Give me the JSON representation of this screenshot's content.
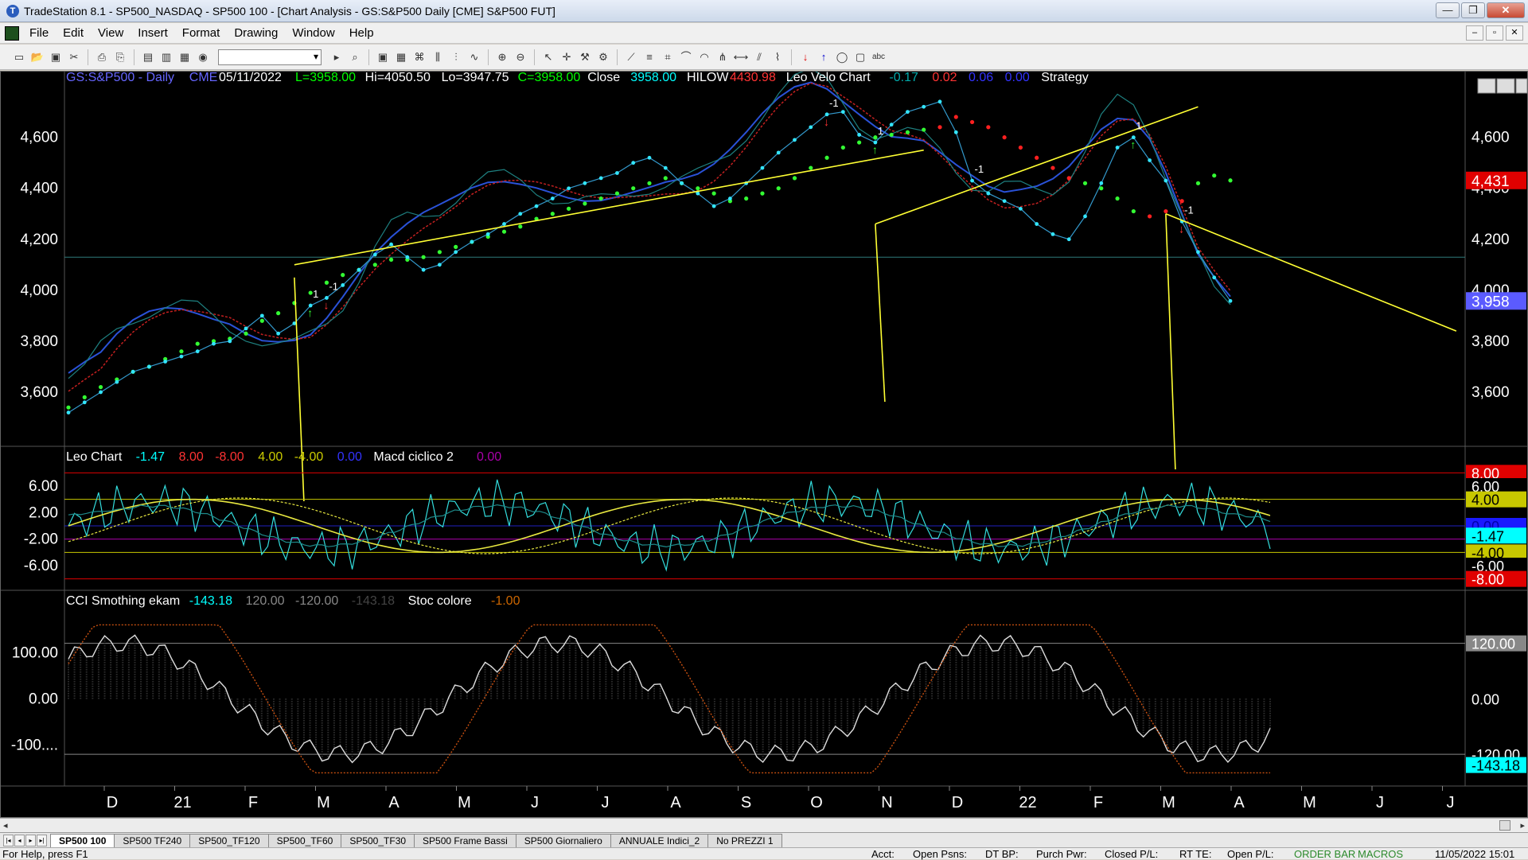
{
  "window": {
    "title": "TradeStation 8.1 - SP500_NASDAQ - SP500 100 - [Chart Analysis - GS:S&P500  Daily  [CME] S&P500 FUT]",
    "buttons": {
      "minimize": "—",
      "restore": "❐",
      "close": "✕"
    }
  },
  "menu": [
    "File",
    "Edit",
    "View",
    "Insert",
    "Format",
    "Drawing",
    "Window",
    "Help"
  ],
  "mdi_buttons": {
    "minimize": "–",
    "restore": "▫",
    "close": "✕"
  },
  "panels": {
    "price": {
      "legend": [
        {
          "text": "GS:S&P500 - Daily",
          "color": "#6666ff"
        },
        {
          "text": "CME",
          "color": "#6666ff"
        },
        {
          "text": "05/11/2022",
          "color": "#ffffff"
        },
        {
          "text": "L=3958.00",
          "color": "#00ff00"
        },
        {
          "text": "Hi=4050.50",
          "color": "#ffffff"
        },
        {
          "text": "Lo=3947.75",
          "color": "#ffffff"
        },
        {
          "text": "C=3958.00",
          "color": "#00ff00"
        },
        {
          "text": "Close",
          "color": "#ffffff"
        },
        {
          "text": "3958.00",
          "color": "#00ffff"
        },
        {
          "text": "HILOW",
          "color": "#ffffff"
        },
        {
          "text": "4430.98",
          "color": "#ff3333"
        },
        {
          "text": "Leo Velo Chart",
          "color": "#ffffff"
        },
        {
          "text": "-0.17",
          "color": "#00aaaa"
        },
        {
          "text": "0.02",
          "color": "#ff3333"
        },
        {
          "text": "0.06",
          "color": "#3333ff"
        },
        {
          "text": "0.00",
          "color": "#3333ff"
        },
        {
          "text": "Strategy",
          "color": "#ffffff"
        }
      ],
      "y_ticks": [
        "4,600",
        "4,400",
        "4,200",
        "4,000",
        "3,800",
        "3,600"
      ],
      "price_tags": [
        {
          "text": "4,431",
          "bg": "#e00000",
          "fg": "#ffffff"
        },
        {
          "text": "3,958",
          "bg": "#5b5bff",
          "fg": "#ffffff"
        }
      ]
    },
    "macd": {
      "legend": [
        {
          "text": "Leo Chart",
          "color": "#ffffff"
        },
        {
          "text": "-1.47",
          "color": "#00ffff"
        },
        {
          "text": "8.00",
          "color": "#ff3333"
        },
        {
          "text": "-8.00",
          "color": "#ff3333"
        },
        {
          "text": "4.00",
          "color": "#cccc00"
        },
        {
          "text": "-4.00",
          "color": "#cccc00"
        },
        {
          "text": "0.00",
          "color": "#3333ff"
        },
        {
          "text": "Macd ciclico 2",
          "color": "#ffffff"
        },
        {
          "text": "0.00",
          "color": "#aa00aa"
        }
      ],
      "y_ticks": [
        "6.00",
        "2.00",
        "-2.00",
        "-6.00"
      ],
      "tags": [
        {
          "text": "8.00",
          "bg": "#e00000",
          "fg": "#ffffff"
        },
        {
          "text": "6.00",
          "bg": "#000000",
          "fg": "#ffffff"
        },
        {
          "text": "4.00",
          "bg": "#c8c800",
          "fg": "#000000"
        },
        {
          "text": "0.00",
          "bg": "#1a1aff",
          "fg": "#0000aa"
        },
        {
          "text": "-1.47",
          "bg": "#00ffff",
          "fg": "#000000"
        },
        {
          "text": "-4.00",
          "bg": "#c8c800",
          "fg": "#000000"
        },
        {
          "text": "-6.00",
          "bg": "#000000",
          "fg": "#ffffff"
        },
        {
          "text": "-8.00",
          "bg": "#e00000",
          "fg": "#ffffff"
        }
      ]
    },
    "cci": {
      "legend": [
        {
          "text": "CCI Smothing ekam",
          "color": "#ffffff"
        },
        {
          "text": "-143.18",
          "color": "#00ffff"
        },
        {
          "text": "120.00",
          "color": "#888888"
        },
        {
          "text": "-120.00",
          "color": "#888888"
        },
        {
          "text": "-143.18",
          "color": "#444444"
        },
        {
          "text": "Stoc colore",
          "color": "#ffffff"
        },
        {
          "text": "-1.00",
          "color": "#cc6600"
        }
      ],
      "y_ticks": [
        "100.00",
        "0.00",
        "-100...."
      ],
      "tags": [
        {
          "text": "120.00",
          "bg": "#888888",
          "fg": "#ffffff"
        },
        {
          "text": "0.00",
          "bg": "#000000",
          "fg": "#ffffff"
        },
        {
          "text": "-120.00",
          "bg": "#000000",
          "fg": "#ffffff"
        },
        {
          "text": "-143.18",
          "bg": "#00ffff",
          "fg": "#000000"
        }
      ]
    }
  },
  "x_labels": [
    "D",
    "21",
    "F",
    "M",
    "A",
    "M",
    "J",
    "J",
    "A",
    "S",
    "O",
    "N",
    "D",
    "22",
    "F",
    "M",
    "A",
    "M",
    "J",
    "J"
  ],
  "chart_data": {
    "type": "line",
    "ylim": [
      3450,
      4780
    ],
    "close": [
      3520,
      3560,
      3600,
      3640,
      3680,
      3700,
      3720,
      3740,
      3760,
      3790,
      3800,
      3850,
      3900,
      3830,
      3870,
      3940,
      3970,
      4020,
      4080,
      4140,
      4180,
      4130,
      4080,
      4100,
      4150,
      4190,
      4220,
      4260,
      4300,
      4330,
      4360,
      4400,
      4420,
      4440,
      4460,
      4500,
      4520,
      4480,
      4420,
      4380,
      4330,
      4360,
      4420,
      4480,
      4540,
      4590,
      4640,
      4690,
      4700,
      4610,
      4580,
      4650,
      4700,
      4720,
      4740,
      4620,
      4430,
      4380,
      4350,
      4320,
      4260,
      4220,
      4200,
      4290,
      4420,
      4560,
      4600,
      4510,
      4430,
      4270,
      4150,
      4050,
      3958
    ],
    "hilow": [
      3540,
      3580,
      3620,
      3650,
      3680,
      3700,
      3730,
      3760,
      3790,
      3800,
      3810,
      3830,
      3880,
      3910,
      3950,
      3990,
      4030,
      4060,
      4080,
      4100,
      4120,
      4120,
      4130,
      4150,
      4170,
      4190,
      4210,
      4230,
      4250,
      4280,
      4300,
      4320,
      4340,
      4360,
      4380,
      4400,
      4420,
      4440,
      4420,
      4400,
      4380,
      4350,
      4360,
      4380,
      4400,
      4440,
      4480,
      4520,
      4560,
      4580,
      4600,
      4610,
      4620,
      4630,
      4640,
      4680,
      4660,
      4640,
      4600,
      4560,
      4520,
      4480,
      4440,
      4420,
      4400,
      4360,
      4310,
      4290,
      4310,
      4350,
      4420,
      4450,
      4431
    ],
    "yellow_lines": [
      {
        "from": [
          3950,
          0
        ],
        "to": [
          4500,
          0
        ]
      },
      {
        "from": [
          4250,
          0
        ],
        "to": [
          4750,
          0
        ]
      },
      {
        "from": [
          4300,
          0
        ],
        "to": [
          3840,
          0
        ]
      }
    ]
  }
}
